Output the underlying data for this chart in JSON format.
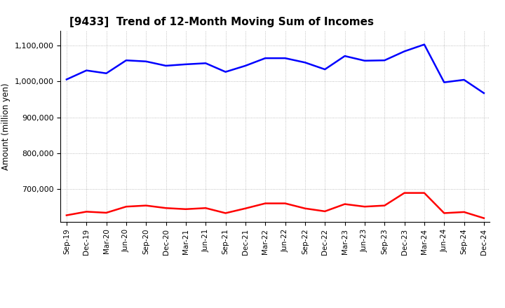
{
  "title": "[9433]  Trend of 12-Month Moving Sum of Incomes",
  "ylabel": "Amount (million yen)",
  "x_labels": [
    "Sep-19",
    "Dec-19",
    "Mar-20",
    "Jun-20",
    "Sep-20",
    "Dec-20",
    "Mar-21",
    "Jun-21",
    "Sep-21",
    "Dec-21",
    "Mar-22",
    "Jun-22",
    "Sep-22",
    "Dec-22",
    "Mar-23",
    "Jun-23",
    "Sep-23",
    "Dec-23",
    "Mar-24",
    "Jun-24",
    "Sep-24",
    "Dec-24"
  ],
  "ordinary_income": [
    1005000,
    1030000,
    1022000,
    1058000,
    1055000,
    1043000,
    1047000,
    1050000,
    1026000,
    1043000,
    1064000,
    1064000,
    1052000,
    1033000,
    1070000,
    1057000,
    1058000,
    1083000,
    1102000,
    997000,
    1004000,
    967000
  ],
  "net_income": [
    628000,
    638000,
    635000,
    652000,
    655000,
    648000,
    645000,
    648000,
    634000,
    647000,
    661000,
    661000,
    647000,
    639000,
    659000,
    652000,
    655000,
    690000,
    690000,
    634000,
    637000,
    620000
  ],
  "ordinary_color": "#0000ff",
  "net_color": "#ff0000",
  "ylim_min": 610000,
  "ylim_max": 1140000,
  "yticks": [
    700000,
    800000,
    900000,
    1000000,
    1100000
  ],
  "background_color": "#ffffff",
  "grid_color": "#999999"
}
